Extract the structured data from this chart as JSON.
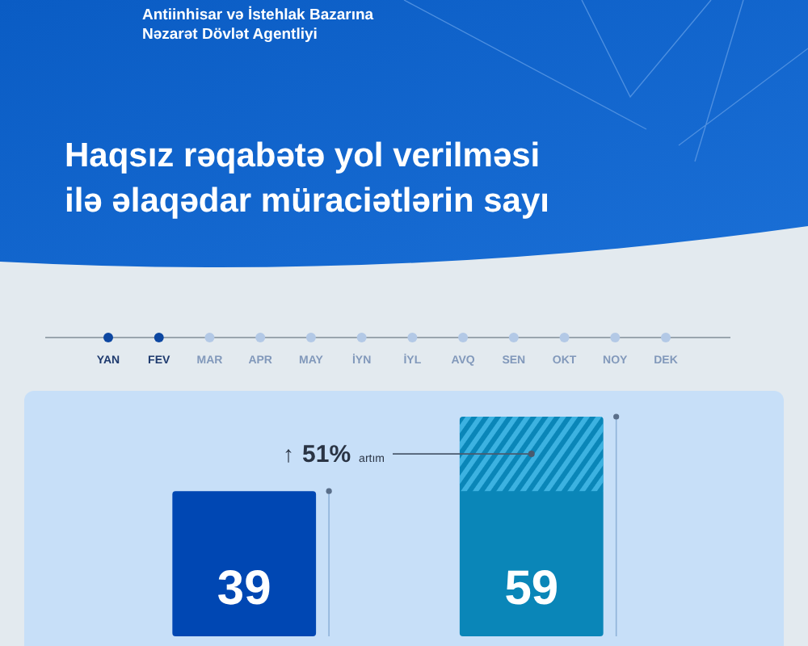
{
  "chart_data": {
    "type": "bar",
    "title": "Haqsız rəqabətə yol verilməsi\nilə əlaqədar müraciətlərin sayı",
    "subtitle": "Antiinhisar və İstehlak Bazarına\nNəzarət Dövlət Agentliyi",
    "categories": [
      null,
      null
    ],
    "values": [
      39,
      59
    ],
    "colors": [
      "#0047b3",
      "#0a86b8"
    ],
    "data_labels": true,
    "annotations": [
      "↑ 51% artım",
      "YAN",
      "FEV",
      "MAR",
      "APR",
      "MAY",
      "İYN",
      "İYL",
      "AVQ",
      "SEN",
      "OKT",
      "NOY",
      "DEK"
    ]
  }
}
